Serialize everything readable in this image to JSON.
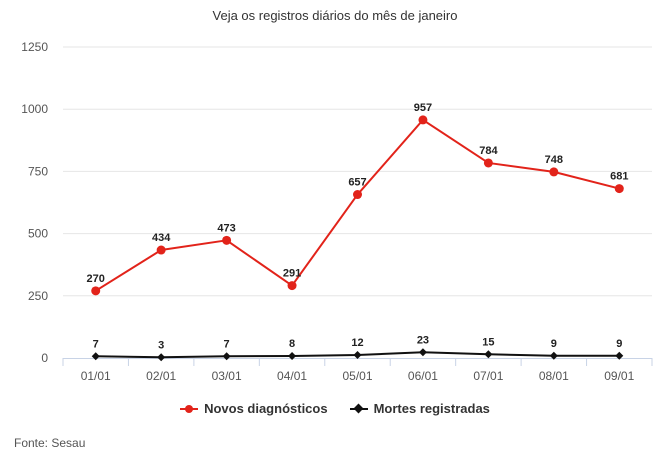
{
  "chart_data": {
    "type": "line",
    "title": "Veja os registros diários do mês de janeiro",
    "categories": [
      "01/01",
      "02/01",
      "03/01",
      "04/01",
      "05/01",
      "06/01",
      "07/01",
      "08/01",
      "09/01"
    ],
    "series": [
      {
        "name": "Novos diagnósticos",
        "color": "#e2231a",
        "marker": "circle",
        "values": [
          270,
          434,
          473,
          291,
          657,
          957,
          784,
          748,
          681
        ]
      },
      {
        "name": "Mortes registradas",
        "color": "#111111",
        "marker": "diamond",
        "values": [
          7,
          3,
          7,
          8,
          12,
          23,
          15,
          9,
          9
        ]
      }
    ],
    "y_ticks": [
      0,
      250,
      500,
      750,
      1000,
      1250
    ],
    "ylim": [
      0,
      1250
    ],
    "grid": "horizontal",
    "legend_position": "bottom"
  },
  "source": "Fonte: Sesau"
}
